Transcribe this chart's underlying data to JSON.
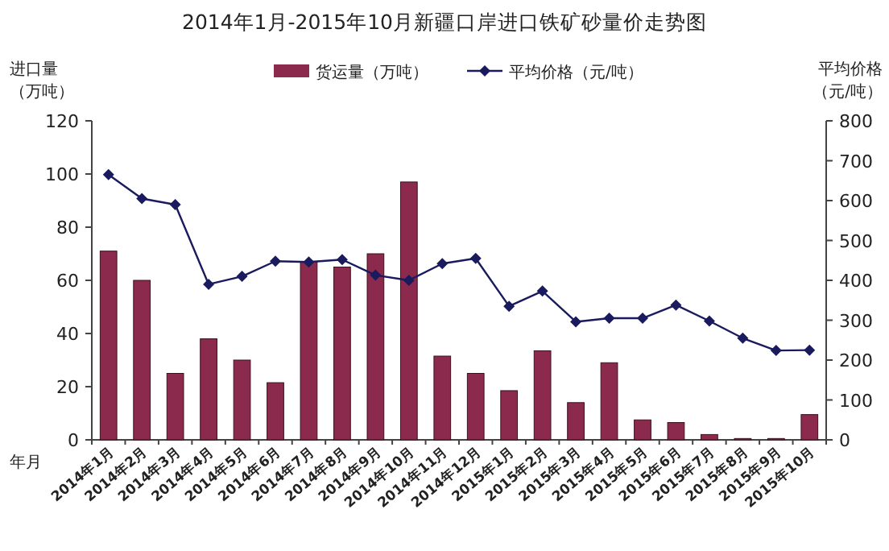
{
  "chart_data": {
    "type": "bar",
    "title": "2014年1月-2015年10月新疆口岸进口铁矿砂量价走势图",
    "xlabel": "年月",
    "ylabel": "进口量（万吨）",
    "y2label": "平均价格（元/吨）",
    "categories": [
      "2014年1月",
      "2014年2月",
      "2014年3月",
      "2014年4月",
      "2014年5月",
      "2014年6月",
      "2014年7月",
      "2014年8月",
      "2014年9月",
      "2014年10月",
      "2014年11月",
      "2014年12月",
      "2015年1月",
      "2015年2月",
      "2015年3月",
      "2015年4月",
      "2015年5月",
      "2015年6月",
      "2015年7月",
      "2015年8月",
      "2015年9月",
      "2015年10月"
    ],
    "series": [
      {
        "name": "货运量（万吨）",
        "color": "#8b2a4d",
        "values": [
          71,
          60,
          25,
          38,
          30,
          21.5,
          67,
          65,
          70,
          97,
          31.5,
          25,
          18.5,
          33.5,
          14,
          29,
          7.5,
          6.5,
          2,
          0.5,
          0.5,
          9.5
        ]
      },
      {
        "name": "平均价格（元/吨）",
        "type": "line",
        "axis": "y2",
        "color": "#1a1a5e",
        "marker": "diamond",
        "values": [
          665,
          605,
          590,
          390,
          410,
          448,
          446,
          452,
          413,
          400,
          442,
          455,
          335,
          373,
          296,
          305,
          305,
          338,
          298,
          255,
          224,
          225
        ]
      }
    ],
    "ylim": [
      0,
      120
    ],
    "yticks": [
      0,
      20,
      40,
      60,
      80,
      100,
      120
    ],
    "y2lim": [
      0,
      800
    ],
    "y2ticks": [
      0,
      100,
      200,
      300,
      400,
      500,
      600,
      700,
      800
    ],
    "legend": "top",
    "grid": false
  }
}
